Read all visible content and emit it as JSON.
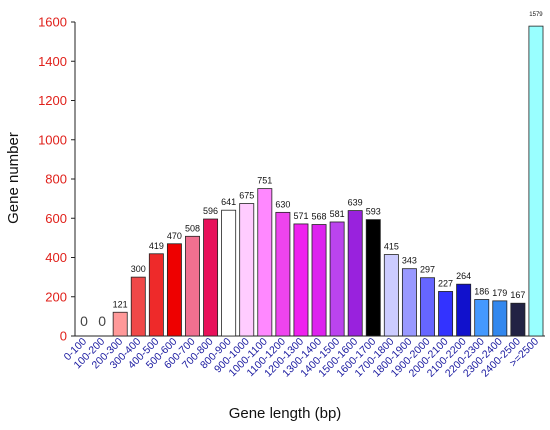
{
  "chart_data": {
    "type": "bar",
    "xlabel": "Gene length (bp)",
    "ylabel": "Gene number",
    "ylim": [
      0,
      1600
    ],
    "yticks": [
      0,
      200,
      400,
      600,
      800,
      1000,
      1200,
      1400,
      1600
    ],
    "grid": false,
    "categories": [
      "0-100",
      "100-200",
      "200-300",
      "300-400",
      "400-500",
      "500-600",
      "600-700",
      "700-800",
      "800-900",
      "900-1000",
      "1000-1100",
      "1100-1200",
      "1200-1300",
      "1300-1400",
      "1400-1500",
      "1500-1600",
      "1600-1700",
      "1700-1800",
      "1800-1900",
      "1900-2000",
      "2000-2100",
      "2100-2200",
      "2200-2300",
      "2300-2400",
      "2400-2500",
      ">=2500"
    ],
    "values": [
      0,
      0,
      121,
      300,
      419,
      470,
      508,
      596,
      641,
      675,
      751,
      630,
      571,
      568,
      581,
      639,
      593,
      415,
      343,
      297,
      227,
      264,
      186,
      179,
      167,
      1579
    ],
    "colors": [
      "#ff9999",
      "#ff9999",
      "#ff9999",
      "#f04848",
      "#ee2a2a",
      "#ee0000",
      "#f07090",
      "#e8105a",
      "#ffffff",
      "#ffccff",
      "#ff88ff",
      "#ee44ee",
      "#ee22ee",
      "#dd22ee",
      "#bb44ee",
      "#9922dd",
      "#000000",
      "#ccccff",
      "#9999ff",
      "#6666ff",
      "#3333ff",
      "#1111cc",
      "#4499ff",
      "#3388ee",
      "#222244",
      "#99ffff"
    ]
  }
}
